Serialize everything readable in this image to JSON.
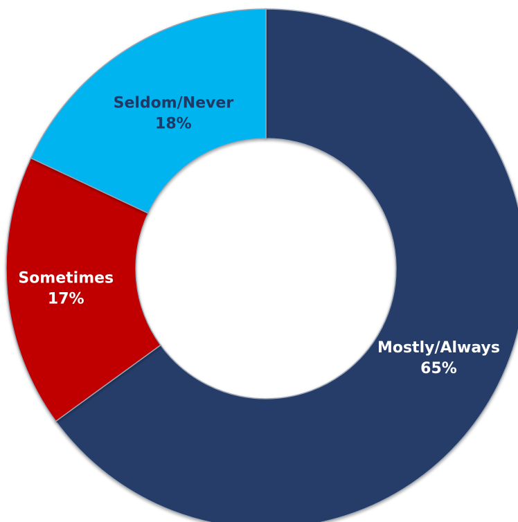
{
  "chart_data": {
    "type": "pie",
    "variant": "donut",
    "title": "",
    "slices": [
      {
        "label": "Mostly/Always",
        "value": 65,
        "value_label": "65%",
        "color": "#253c69",
        "label_color": "#ffffff"
      },
      {
        "label": "Sometimes",
        "value": 17,
        "value_label": "17%",
        "color": "#c00000",
        "label_color": "#ffffff"
      },
      {
        "label": "Seldom/Never",
        "value": 18,
        "value_label": "18%",
        "color": "#00b4f0",
        "label_color": "#1f3864"
      }
    ],
    "start_angle_deg": 0,
    "direction": "clockwise",
    "legend": "none"
  }
}
